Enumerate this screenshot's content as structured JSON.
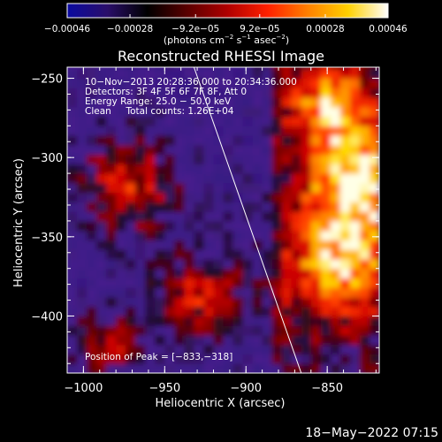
{
  "chart_data": {
    "type": "heatmap",
    "title": "Reconstructed RHESSI Image",
    "xlabel": "Heliocentric X (arcsec)",
    "ylabel": "Heliocentric Y (arcsec)",
    "xlim": [
      -1010,
      -818
    ],
    "ylim": [
      -436,
      -243
    ],
    "x_ticks": [
      -1000,
      -950,
      -900,
      -850
    ],
    "y_ticks": [
      -250,
      -300,
      -350,
      -400
    ],
    "x_tick_labels": [
      "−1000",
      "−950",
      "−900",
      "−850"
    ],
    "y_tick_labels": [
      "−250",
      "−300",
      "−350",
      "−400"
    ],
    "colorbar": {
      "range": [
        -0.00046,
        0.00046
      ],
      "ticks": [
        -0.00046,
        -0.00028,
        -9.2e-05,
        9.2e-05,
        0.00028,
        0.00046
      ],
      "tick_labels": [
        "−0.00046",
        "−0.00028",
        "−9.2e−05",
        "9.2e−05",
        "0.00028",
        "0.00046"
      ],
      "units_parts": [
        "(photons cm",
        "−2",
        " s",
        "−1",
        " asec",
        "−2",
        ")"
      ],
      "colors": [
        "#0a0aa0",
        "#2a0e6a",
        "#000000",
        "#5a0000",
        "#b00000",
        "#ff2000",
        "#ff8000",
        "#ffd000",
        "#ffffff"
      ]
    },
    "annotations": [
      "10−Nov−2013 20:28:36.000 to 20:34:36.000",
      "Detectors: 3F 4F 5F 6F 7F 8F, Att 0",
      "Energy Range: 25.0 − 50.0 keV",
      "Clean     Total counts: 1.26E+04",
      "Position of Peak = [−833,−318]"
    ],
    "limb_line": {
      "x": [
        -932,
        -866
      ],
      "y": [
        -243,
        -436
      ]
    },
    "peak": {
      "x": -833,
      "y": -318
    },
    "sources": [
      {
        "x": -975,
        "y": -320,
        "r": 30,
        "v": 0.7
      },
      {
        "x": -930,
        "y": -390,
        "r": 28,
        "v": 0.65
      },
      {
        "x": -835,
        "y": -318,
        "r": 32,
        "v": 1.0
      },
      {
        "x": -850,
        "y": -270,
        "r": 28,
        "v": 0.85
      },
      {
        "x": -845,
        "y": -370,
        "r": 35,
        "v": 0.9
      },
      {
        "x": -990,
        "y": -420,
        "r": 20,
        "v": 0.6
      }
    ],
    "grid": false
  },
  "footer": {
    "date": "18−May−2022 07:15"
  }
}
